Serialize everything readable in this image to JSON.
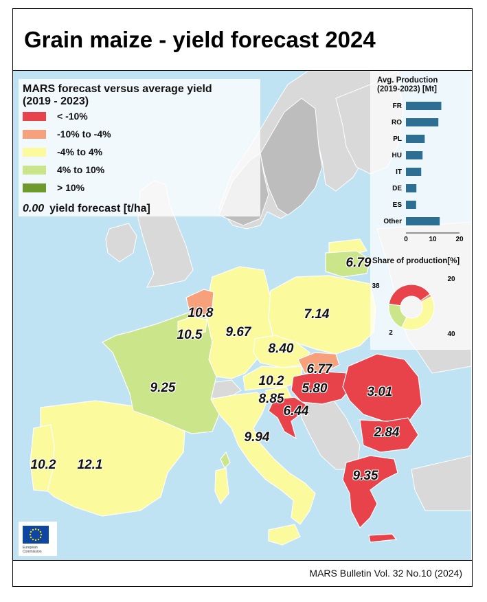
{
  "title": "Grain maize - yield forecast 2024",
  "footer": "MARS Bulletin Vol. 32 No.10 (2024)",
  "legend": {
    "title_line1": "MARS forecast versus average yield",
    "title_line2": "(2019 - 2023)",
    "classes": [
      {
        "label": "< -10%",
        "color": "#e8424a"
      },
      {
        "label": "-10% to -4%",
        "color": "#f7a07c"
      },
      {
        "label": "-4% to 4%",
        "color": "#fbfa9c"
      },
      {
        "label": "4% to 10%",
        "color": "#cbe68a"
      },
      {
        "label": "> 10%",
        "color": "#6e9a2c"
      }
    ],
    "value_example": "0.00",
    "value_caption": "yield forecast [t/ha]"
  },
  "yield_labels": {
    "lithuania": "6.79",
    "poland": "7.14",
    "netherlands": "10.8",
    "belgium": "10.5",
    "germany": "9.67",
    "czechia": "8.40",
    "slovakia": "6.77",
    "austria": "10.2",
    "hungary": "5.80",
    "romania": "3.01",
    "slovenia": "8.85",
    "croatia": "6.44",
    "france": "9.25",
    "italy": "9.94",
    "bulgaria": "2.84",
    "portugal": "10.2",
    "spain": "12.1",
    "greece": "9.35"
  },
  "inset": {
    "title_line1": "Avg. Production",
    "title_line2": "(2019-2023) [Mt]",
    "share_title": "Share of production[%]",
    "bar_color": "#2c6f93"
  },
  "chart_data": [
    {
      "type": "bar",
      "orientation": "horizontal",
      "title": "Avg. Production (2019-2023) [Mt]",
      "categories": [
        "FR",
        "RO",
        "PL",
        "HU",
        "IT",
        "DE",
        "ES",
        "Other"
      ],
      "values": [
        13.2,
        12.1,
        7.0,
        6.2,
        5.7,
        3.9,
        3.8,
        12.6
      ],
      "xlim": [
        0,
        20
      ],
      "xticks": [
        "0",
        "10",
        "20"
      ],
      "color": "#2c6f93"
    },
    {
      "type": "pie",
      "donut": true,
      "title": "Share of production[%]",
      "values": [
        38,
        2,
        40,
        20
      ],
      "labels": [
        "38",
        "2",
        "40",
        "20"
      ],
      "colors": [
        "#e8424a",
        "#f7a07c",
        "#fbfa9c",
        "#cbe68a"
      ]
    }
  ],
  "eu_logo": {
    "line1": "European",
    "line2": "Commission"
  }
}
